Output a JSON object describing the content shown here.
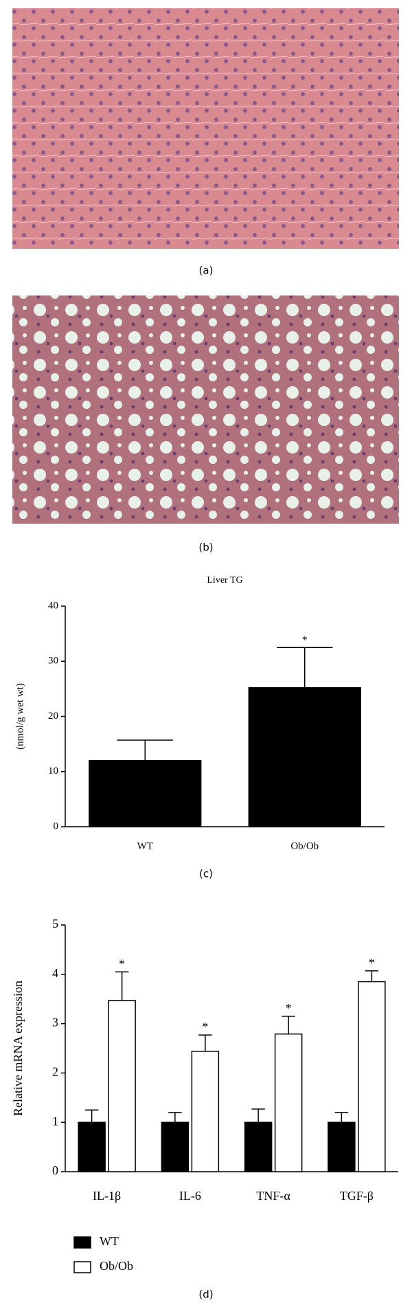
{
  "panels": [
    {
      "label": "(a)"
    },
    {
      "label": "(b)"
    }
  ],
  "chart_data": [
    {
      "type": "bar",
      "title": "Liver TG",
      "ylabel": "(nmol/g wet wt)",
      "caption": "(c)",
      "categories": [
        "WT",
        "Ob/Ob"
      ],
      "values": [
        12,
        25.2
      ],
      "errors": [
        3.7,
        7.3
      ],
      "annotations": [
        null,
        "*"
      ],
      "color": "#000000",
      "ylim": [
        0,
        40
      ],
      "yticks": [
        0,
        10,
        20,
        30,
        40
      ]
    },
    {
      "type": "grouped-bar",
      "ylabel": "Relative mRNA expression",
      "caption": "(d)",
      "categories": [
        "IL-1β",
        "IL-6",
        "TNF-α",
        "TGF-β"
      ],
      "series": [
        {
          "name": "WT",
          "color": "#000000",
          "values": [
            1,
            1,
            1,
            1
          ],
          "errors": [
            0.25,
            0.2,
            0.27,
            0.2
          ],
          "annotations": [
            null,
            null,
            null,
            null
          ]
        },
        {
          "name": "Ob/Ob",
          "color": "#ffffff",
          "values": [
            3.47,
            2.44,
            2.79,
            3.85
          ],
          "errors": [
            0.58,
            0.33,
            0.36,
            0.22
          ],
          "annotations": [
            "*",
            "*",
            "*",
            "*"
          ]
        }
      ],
      "ylim": [
        0,
        5
      ],
      "yticks": [
        0,
        1,
        2,
        3,
        4,
        5
      ],
      "legend": "bottom-left"
    }
  ]
}
